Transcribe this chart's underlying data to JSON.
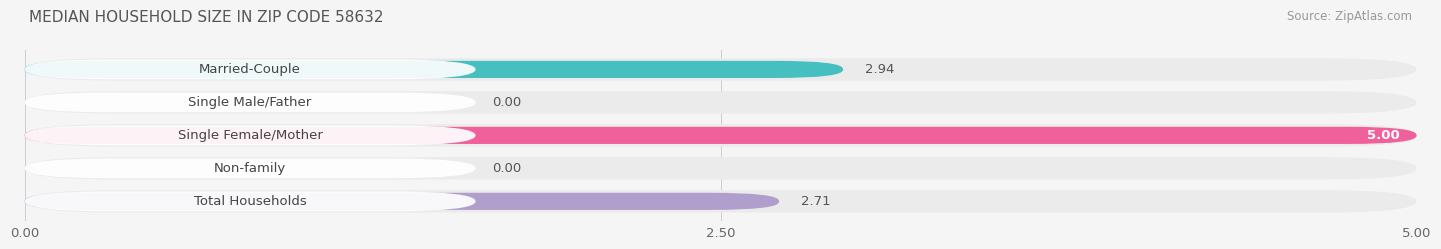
{
  "title": "MEDIAN HOUSEHOLD SIZE IN ZIP CODE 58632",
  "source": "Source: ZipAtlas.com",
  "categories": [
    "Married-Couple",
    "Single Male/Father",
    "Single Female/Mother",
    "Non-family",
    "Total Households"
  ],
  "values": [
    2.94,
    0.0,
    5.0,
    0.0,
    2.71
  ],
  "bar_colors": [
    "#45bfbf",
    "#a0b8e8",
    "#f0609a",
    "#f5c89a",
    "#b09fcc"
  ],
  "bg_color": "#ebebeb",
  "background_color": "#f5f5f5",
  "xlim": [
    0,
    5.0
  ],
  "xticks": [
    0.0,
    2.5,
    5.0
  ],
  "xtick_labels": [
    "0.00",
    "2.50",
    "5.00"
  ],
  "title_fontsize": 11,
  "label_fontsize": 9.5,
  "value_fontsize": 9.5,
  "source_fontsize": 8.5,
  "value_label_color_full": "#ffffff",
  "value_label_color_partial": "#555555"
}
